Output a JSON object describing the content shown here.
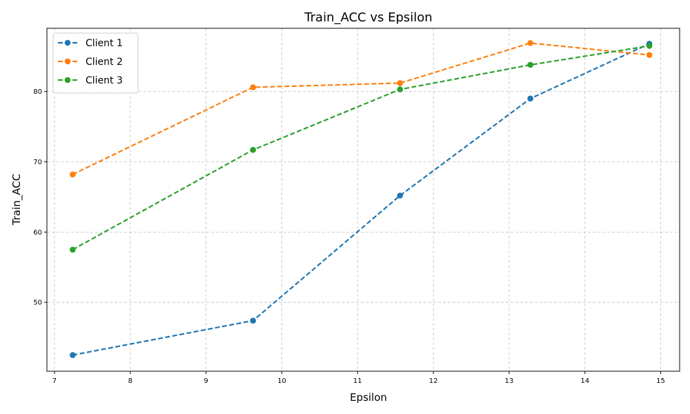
{
  "chart_data": {
    "type": "line",
    "title": "Train_ACC vs Epsilon",
    "xlabel": "Epsilon",
    "ylabel": "Train_ACC",
    "xlim": [
      6.9,
      15.25
    ],
    "ylim": [
      40.2,
      89.0
    ],
    "xticks": [
      7,
      8,
      9,
      10,
      11,
      12,
      13,
      14,
      15
    ],
    "yticks": [
      50,
      60,
      70,
      80
    ],
    "grid": true,
    "legend_position": "top-left",
    "series": [
      {
        "name": "Client 1",
        "color": "#1f77b4",
        "x": [
          7.24,
          9.62,
          11.56,
          13.28,
          14.85
        ],
        "y": [
          42.5,
          47.4,
          65.2,
          79.0,
          86.8
        ]
      },
      {
        "name": "Client 2",
        "color": "#ff7f0e",
        "x": [
          7.24,
          9.62,
          11.56,
          13.28,
          14.85
        ],
        "y": [
          68.2,
          80.6,
          81.2,
          86.9,
          85.2
        ]
      },
      {
        "name": "Client 3",
        "color": "#2ca02c",
        "x": [
          7.24,
          9.62,
          11.56,
          13.28,
          14.85
        ],
        "y": [
          57.5,
          71.7,
          80.3,
          83.8,
          86.5
        ]
      }
    ]
  }
}
